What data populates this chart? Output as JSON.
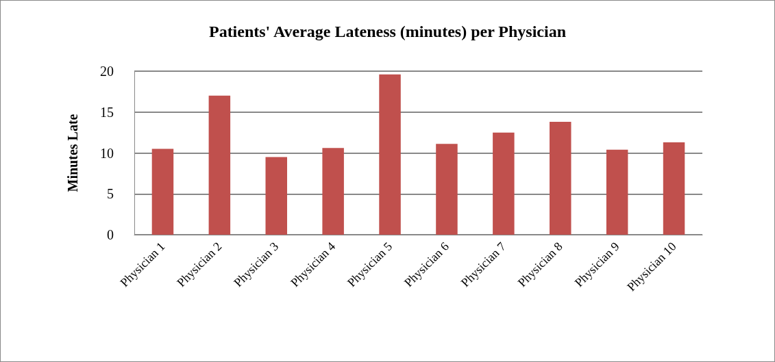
{
  "chart_data": {
    "type": "bar",
    "title": "Patients' Average Lateness (minutes) per Physician",
    "ylabel": "Minutes Late",
    "categories": [
      "Physician 1",
      "Physician 2",
      "Physician 3",
      "Physician 4",
      "Physician 5",
      "Physician 6",
      "Physician 7",
      "Physician 8",
      "Physician 9",
      "Physician 10"
    ],
    "values": [
      10.5,
      17.0,
      9.5,
      10.6,
      19.6,
      11.1,
      12.5,
      13.8,
      10.4,
      11.3
    ],
    "color": "#c0504d",
    "ylim": [
      0,
      20
    ],
    "yticks": [
      0,
      5,
      10,
      15,
      20
    ],
    "grid": "y"
  }
}
